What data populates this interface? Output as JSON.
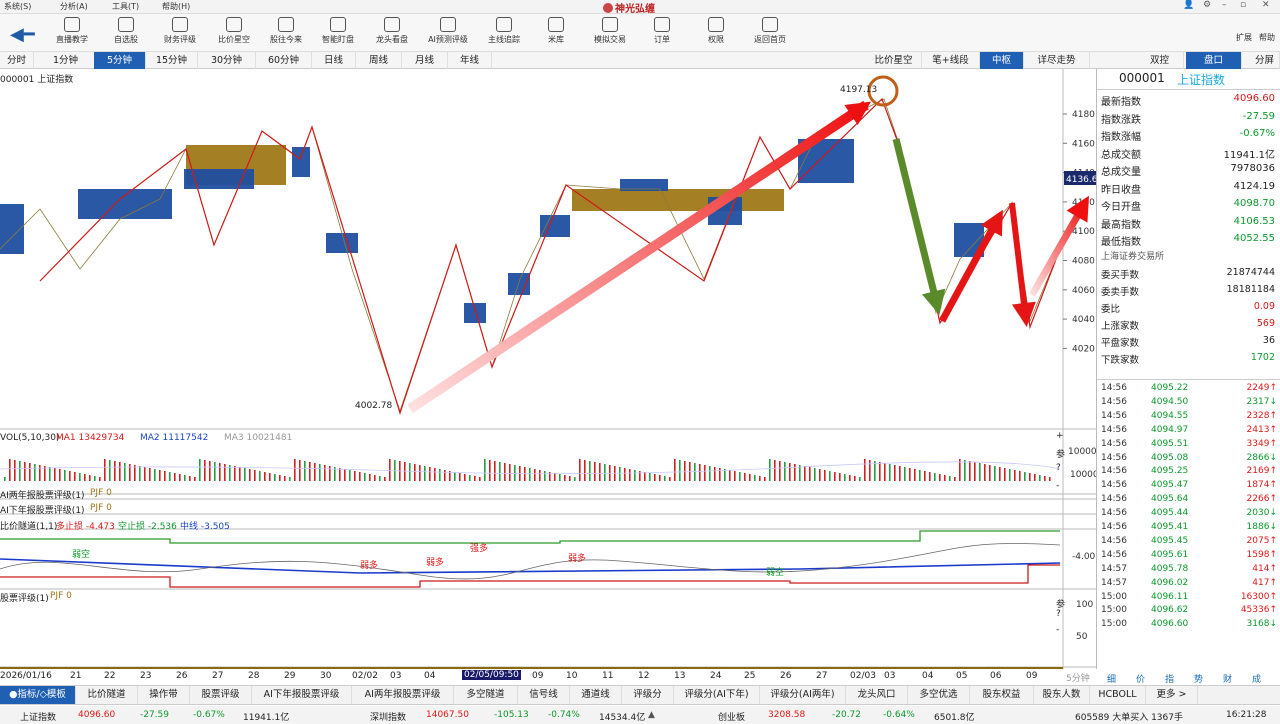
{
  "menu": {
    "items": [
      "系统(S)",
      "分析(A)",
      "工具(T)",
      "帮助(H)"
    ],
    "app_title": "神光弘缠"
  },
  "toolbar": {
    "items": [
      "直播教学",
      "自选股",
      "财务评级",
      "比价星空",
      "股往今来",
      "智能盯盘",
      "龙头看盘",
      "AI预测评级",
      "主线追踪",
      "米库",
      "模拟交易",
      "订单",
      "权限",
      "返回首页"
    ],
    "right": [
      "扩展",
      "帮助"
    ]
  },
  "periods": {
    "items": [
      "分时",
      "1分钟",
      "5分钟",
      "15分钟",
      "30分钟",
      "60分钟",
      "日线",
      "周线",
      "月线",
      "年线"
    ],
    "selected": "5分钟"
  },
  "views": {
    "items": [
      "比价星空",
      "笔+线段",
      "中枢",
      "详尽走势"
    ],
    "selected": "中枢"
  },
  "right_tabs": {
    "items": [
      "双控",
      "盘口",
      "分屏"
    ],
    "selected": "盘口"
  },
  "chart": {
    "code_title": "000001 上证指数",
    "y_ticks": [
      "4180",
      "4160",
      "4140",
      "4120",
      "4100",
      "4080",
      "4060",
      "4040",
      "4020"
    ],
    "price_tag": "4136.6",
    "high_label": "4197.13",
    "low_label": "4002.78",
    "vol_title": "VOL(5,10,30)",
    "vol_ma1": "MA1 13429734",
    "vol_ma2": "MA2 11117542",
    "vol_ma3": "MA3 10021481",
    "vol_ticks": [
      "10000",
      "10000"
    ],
    "ind1_name": "AI两年报股票评级(1)",
    "ind1_val": "PJF 0",
    "ind2_name": "AI下年报股票评级(1)",
    "ind2_val": "PJF 0",
    "tunnel_name": "比价隧道(1,1)",
    "tunnel_a": "多止损 -4.473",
    "tunnel_b": "空止损 -2.536",
    "tunnel_c": "中线 -3.505",
    "tunnel_tick": "-4.00",
    "tunnel_tags": [
      "弱空",
      "弱多",
      "弱多",
      "强多",
      "弱多",
      "弱空"
    ],
    "ind4_name": "股票评级(1)",
    "ind4_val": "PJF 0",
    "ind4_ticks": [
      "100",
      "50"
    ],
    "side_glyphs": [
      "+",
      "参",
      "?",
      "-",
      "参",
      "?",
      "-",
      "参",
      "?"
    ],
    "x_labels": [
      "2026/01/16",
      "21",
      "22",
      "23",
      "26",
      "27",
      "28",
      "29",
      "30",
      "02/02",
      "03",
      "04",
      "02/05/09:50",
      "09",
      "10",
      "11",
      "12",
      "13",
      "24",
      "25",
      "26",
      "27",
      "02/03",
      "03",
      "04",
      "05",
      "06",
      "09"
    ],
    "x_right": "5分钟"
  },
  "quote": {
    "code": "000001",
    "name": "上证指数",
    "rows": [
      {
        "k": "最新指数",
        "v": "4096.60",
        "c": "red"
      },
      {
        "k": "指数涨跌",
        "v": "-27.59",
        "c": "grn"
      },
      {
        "k": "指数涨幅",
        "v": "-0.67%",
        "c": "grn"
      },
      {
        "k": "总成交额",
        "v": "11941.1亿",
        "c": "dark"
      },
      {
        "k": "总成交量",
        "v": "7978036",
        "c": "dark"
      },
      {
        "k": "昨日收盘",
        "v": "4124.19",
        "c": "dark"
      },
      {
        "k": "今日开盘",
        "v": "4098.70",
        "c": "grn"
      },
      {
        "k": "最高指数",
        "v": "4106.53",
        "c": "grn"
      },
      {
        "k": "最低指数",
        "v": "4052.55",
        "c": "grn"
      }
    ],
    "exchange": "上海证券交易所",
    "rows2": [
      {
        "k": "委买手数",
        "v": "21874744",
        "c": "dark"
      },
      {
        "k": "委卖手数",
        "v": "18181184",
        "c": "dark"
      },
      {
        "k": "委比",
        "v": "0.09",
        "c": "red"
      },
      {
        "k": "上涨家数",
        "v": "569",
        "c": "red"
      },
      {
        "k": "平盘家数",
        "v": "36",
        "c": "dark"
      },
      {
        "k": "下跌家数",
        "v": "1702",
        "c": "grn"
      }
    ],
    "ticks": [
      [
        "14:56",
        "4095.22",
        "2249↑"
      ],
      [
        "14:56",
        "4094.50",
        "2317↓"
      ],
      [
        "14:56",
        "4094.55",
        "2328↑"
      ],
      [
        "14:56",
        "4094.97",
        "2413↑"
      ],
      [
        "14:56",
        "4095.51",
        "3349↑"
      ],
      [
        "14:56",
        "4095.08",
        "2866↓"
      ],
      [
        "14:56",
        "4095.25",
        "2169↑"
      ],
      [
        "14:56",
        "4095.47",
        "1874↑"
      ],
      [
        "14:56",
        "4095.64",
        "2266↑"
      ],
      [
        "14:56",
        "4095.44",
        "2030↓"
      ],
      [
        "14:56",
        "4095.41",
        "1886↓"
      ],
      [
        "14:56",
        "4095.45",
        "2075↑"
      ],
      [
        "14:56",
        "4095.61",
        "1598↑"
      ],
      [
        "14:57",
        "4095.78",
        "414↑"
      ],
      [
        "14:57",
        "4096.02",
        "417↑"
      ],
      [
        "15:00",
        "4096.11",
        "16300↑"
      ],
      [
        "15:00",
        "4096.62",
        "45336↑"
      ],
      [
        "15:00",
        "4096.60",
        "3168↓"
      ]
    ],
    "bottom_tabs": [
      "细",
      "价",
      "指",
      "势",
      "财",
      "成"
    ]
  },
  "bottom_tabs": {
    "items": [
      "●指标/◇模板",
      "比价隧道",
      "操作带",
      "股票评级",
      "AI下年报股票评级",
      "AI两年报股票评级",
      "多空隧道",
      "信号线",
      "通道线",
      "评级分",
      "评级分(AI下年)",
      "评级分(AI两年)",
      "龙头风口",
      "多空优选",
      "股东权益",
      "股东人数",
      "HCBOLL",
      "更多 >"
    ],
    "selected": "●指标/◇模板"
  },
  "status": {
    "sh_name": "上证指数",
    "sh_price": "4096.60",
    "sh_chg": "-27.59",
    "sh_pct": "-0.67%",
    "sh_amt": "11941.1亿",
    "sz_name": "深圳指数",
    "sz_price": "14067.50",
    "sz_chg": "-105.13",
    "sz_pct": "-0.74%",
    "sz_amt": "14534.4亿",
    "cy_name": "创业板",
    "cy_price": "3208.58",
    "cy_chg": "-20.72",
    "cy_pct": "-0.64%",
    "cy_amt": "6501.8亿",
    "ticker": "605589 大单买入 1367手",
    "time": "16:21:28"
  },
  "colors": {
    "accent": "#1f5fb4",
    "up": "#e01818",
    "down": "#0c9a2c",
    "zone_blue": "#1f4fa0",
    "zone_gold": "#a07818",
    "arrow_green": "#5b8a2a"
  }
}
